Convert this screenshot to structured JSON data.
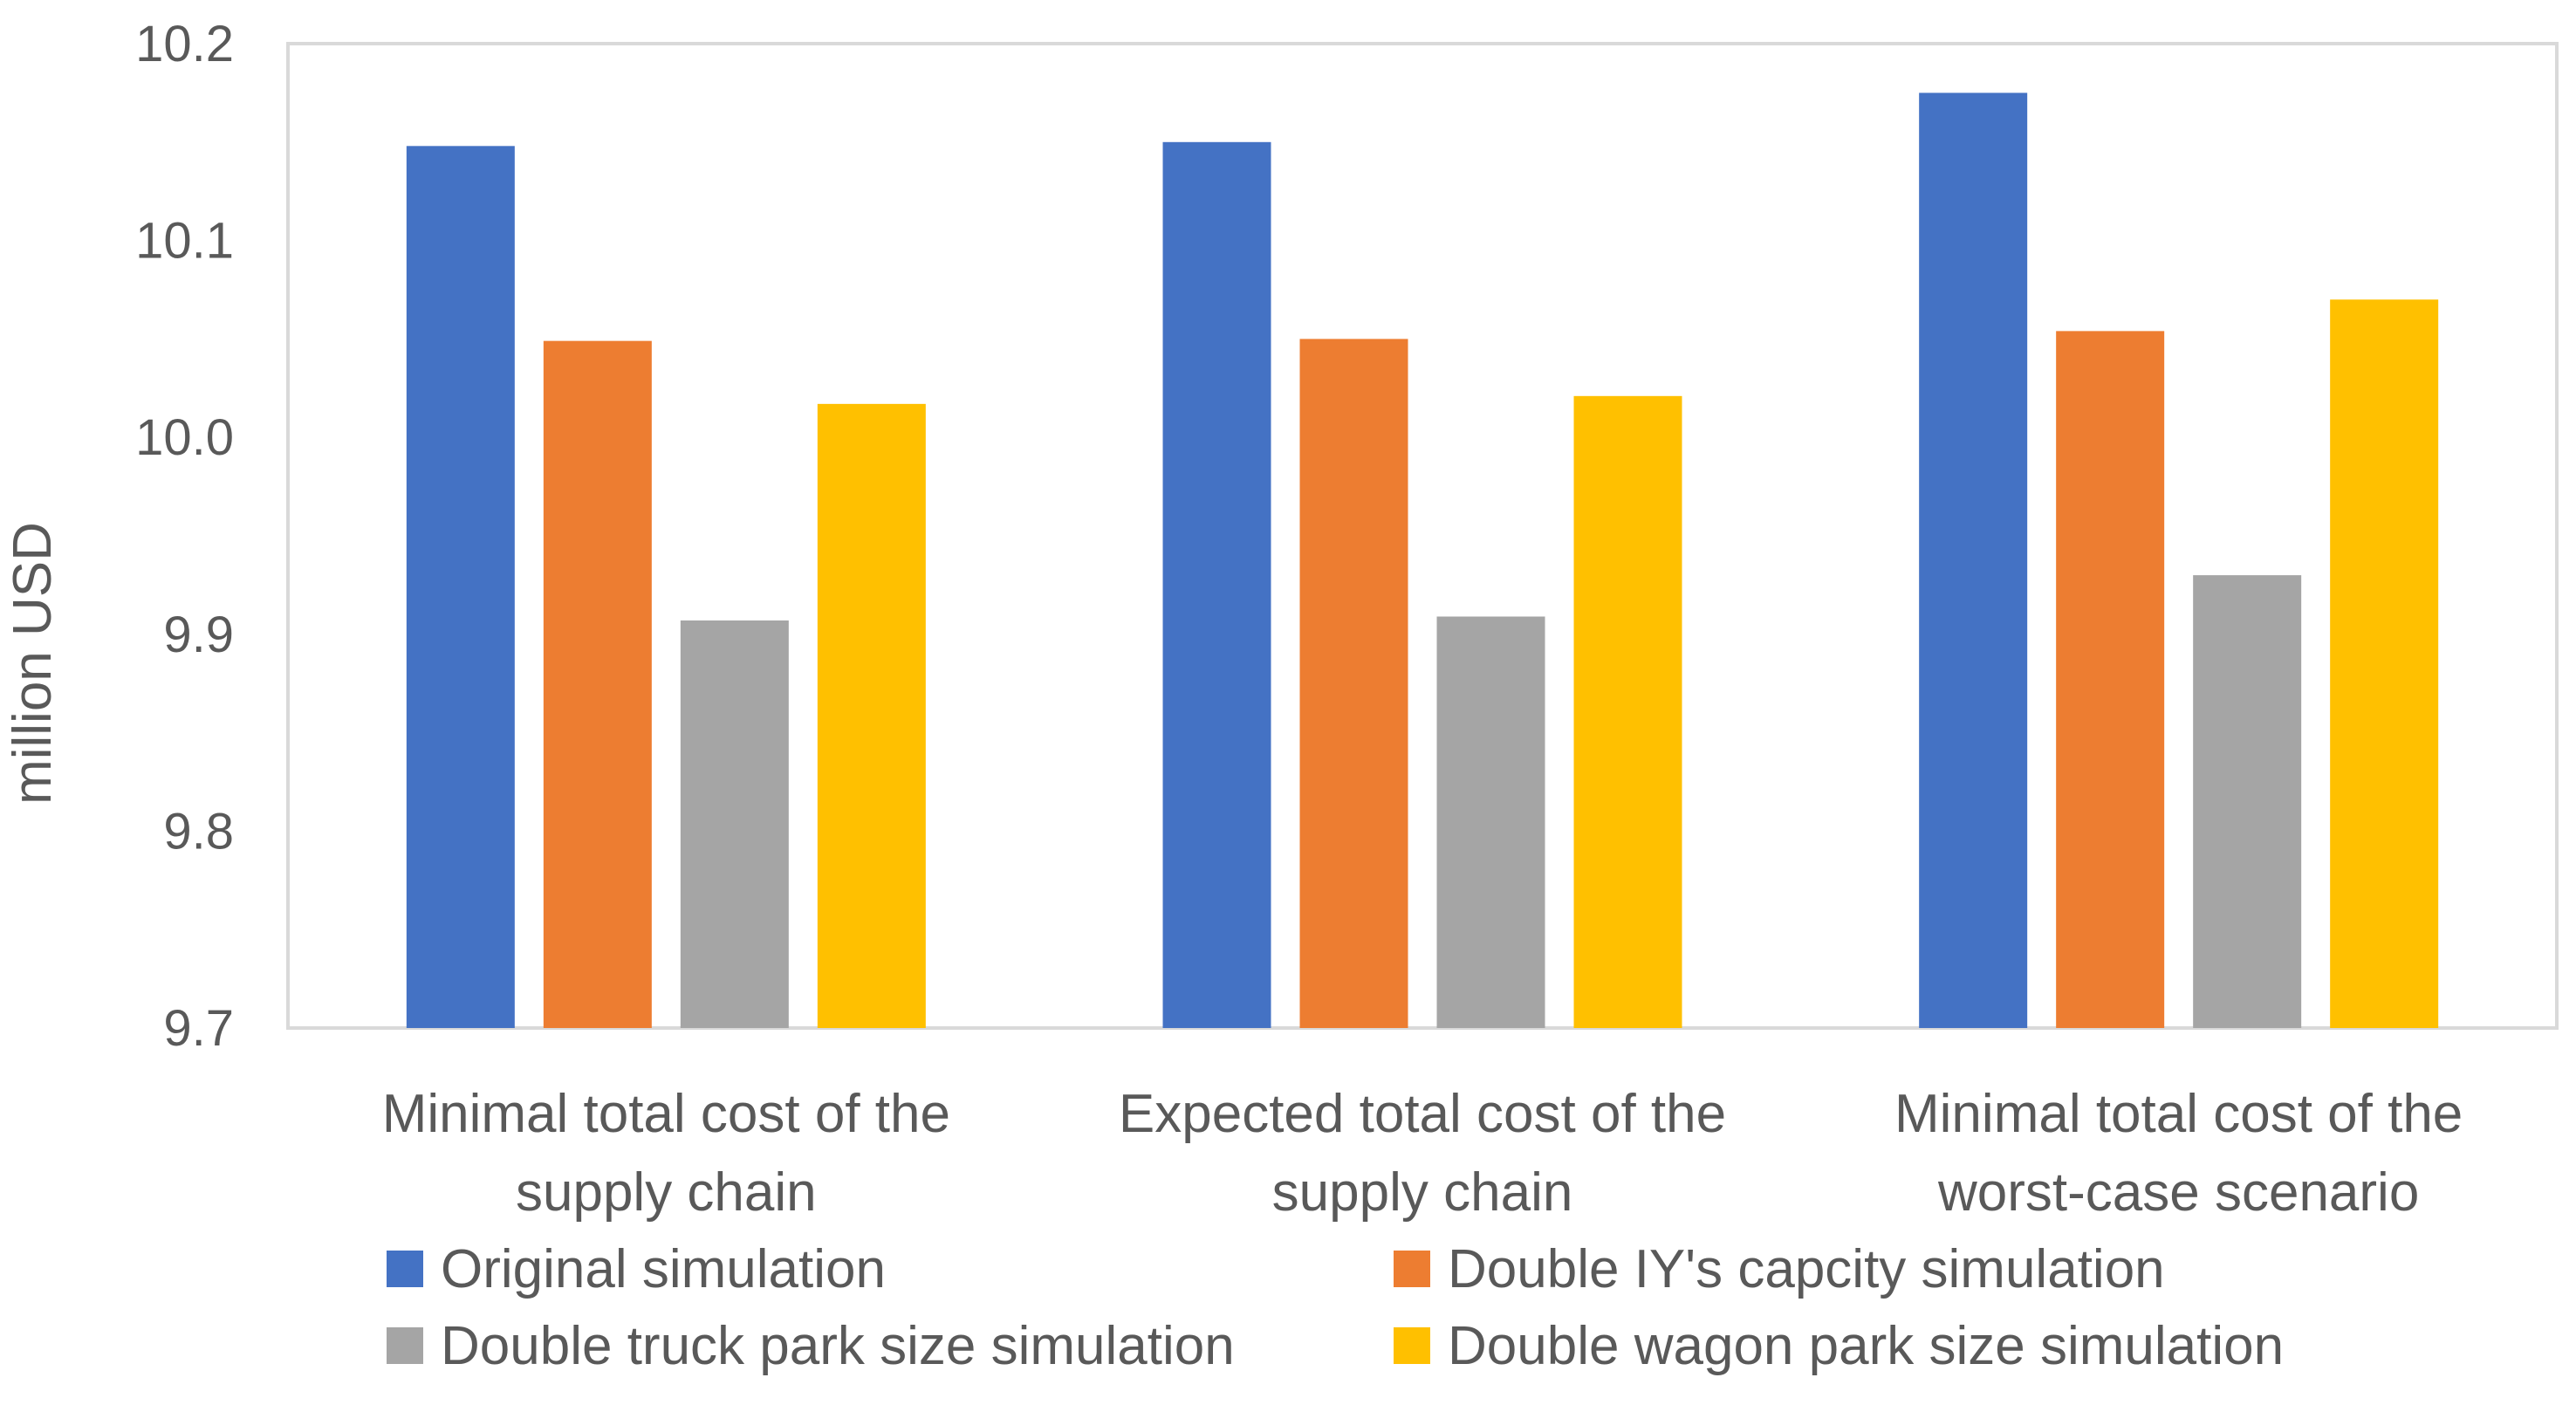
{
  "chart_data": {
    "type": "bar",
    "title": "",
    "xlabel": "",
    "ylabel": "million USD",
    "ylim": [
      9.7,
      10.2
    ],
    "yticks": [
      "9.7",
      "9.8",
      "9.9",
      "10.0",
      "10.1",
      "10.2"
    ],
    "grid": false,
    "legend_position": "bottom",
    "categories": [
      [
        "Minimal total cost of the",
        "supply chain"
      ],
      [
        "Expected total cost of the",
        "supply chain"
      ],
      [
        "Minimal total cost of the",
        "worst-case scenario"
      ]
    ],
    "series": [
      {
        "name": "Original simulation",
        "color": "#4472C4",
        "values": [
          10.148,
          10.15,
          10.175
        ]
      },
      {
        "name": "Double IY's capcity simulation",
        "color": "#ED7D31",
        "values": [
          10.049,
          10.05,
          10.054
        ]
      },
      {
        "name": "Double truck park size simulation",
        "color": "#A5A5A5",
        "values": [
          9.907,
          9.909,
          9.93
        ]
      },
      {
        "name": "Double wagon park size simulation",
        "color": "#FFC000",
        "values": [
          10.017,
          10.021,
          10.07
        ]
      }
    ]
  }
}
